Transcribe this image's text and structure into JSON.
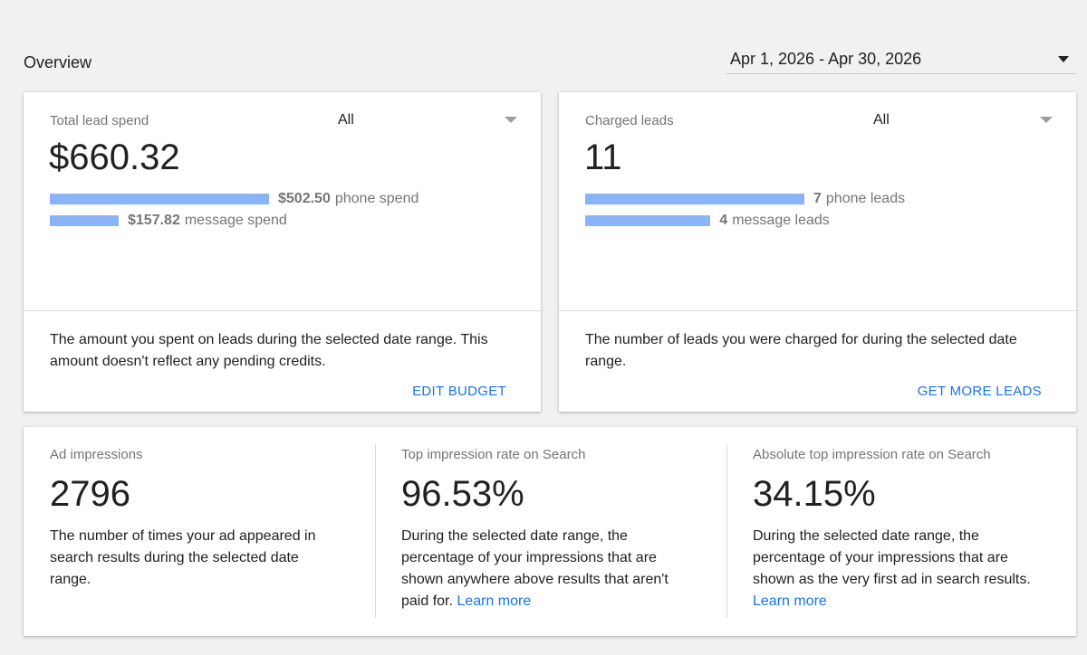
{
  "header": {
    "title": "Overview",
    "date_range": "Apr 1, 2026 - Apr 30, 2026"
  },
  "cards": [
    {
      "label": "Total lead spend",
      "filter": "All",
      "total": "$660.32",
      "breakdown": [
        {
          "value": 502.5,
          "label": "$502.50",
          "text": "phone spend"
        },
        {
          "value": 157.82,
          "label": "$157.82",
          "text": "message spend"
        }
      ],
      "description": "The amount you spent on leads during the selected date range. This amount doesn't reflect any pending credits.",
      "action": "EDIT BUDGET"
    },
    {
      "label": "Charged leads",
      "filter": "All",
      "total": "11",
      "breakdown": [
        {
          "value": 7,
          "text": "phone leads"
        },
        {
          "value": 4,
          "text": "message leads"
        }
      ],
      "description": "The number of leads you were charged for during the selected date range.",
      "action": "GET MORE LEADS"
    }
  ],
  "metrics": [
    {
      "label": "Ad impressions",
      "value": "2796",
      "description": "The number of times your ad appeared in search results during the selected date range."
    },
    {
      "label": "Top impression rate on Search",
      "value": "96.53%",
      "description": "During the selected date range, the percentage of your impressions that are shown anywhere above results that aren't paid for.",
      "link": "Learn more"
    },
    {
      "label": "Absolute top impression rate on Search",
      "value": "34.15%",
      "description": "During the selected date range, the percentage of your impressions that are shown as the very first ad in search results.",
      "link": "Learn more"
    }
  ]
}
